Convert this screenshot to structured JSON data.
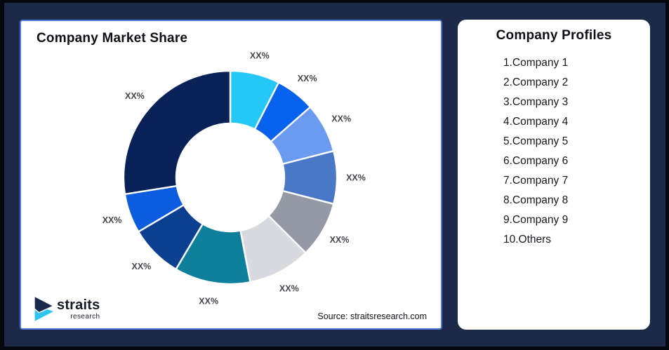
{
  "window": {
    "bg": "#1D2A47",
    "frame_border": "#06080d"
  },
  "market_share": {
    "title": "Company Market Share",
    "source": "Source: straitsresearch.com",
    "card_border": "#4E79D6",
    "logo": {
      "brand": "straits",
      "sub": "research",
      "icon_navy": "#18294B",
      "icon_cyan": "#2CC5F0"
    }
  },
  "chart_data": {
    "type": "pie",
    "subtype": "donut",
    "title": "Company Market Share",
    "categories": [
      "Company 1",
      "Company 2",
      "Company 3",
      "Company 4",
      "Company 5",
      "Company 6",
      "Company 7",
      "Company 8",
      "Company 9",
      "Others"
    ],
    "values": [
      7.5,
      6,
      7.5,
      8,
      8.5,
      9.5,
      11.5,
      8,
      6,
      27.5
    ],
    "labels": [
      "XX%",
      "XX%",
      "XX%",
      "XX%",
      "XX%",
      "XX%",
      "XX%",
      "XX%",
      "XX%",
      "XX%"
    ],
    "colors": [
      "#24C7F6",
      "#0762EE",
      "#6B9BF0",
      "#4B78C6",
      "#9599A6",
      "#D8DADF",
      "#0E7F9B",
      "#0B3F90",
      "#0B5CDE",
      "#082157"
    ],
    "label_color": "#45464C",
    "start_angle_deg": 0,
    "direction": "clockwise",
    "legend_position": "none",
    "note": "All slice data labels are masked as XX% in the image; values are visual estimates of arc sizes in percent."
  },
  "profiles": {
    "title": "Company Profiles",
    "items": [
      "1.Company 1",
      "2.Company 2",
      "3.Company 3",
      "4.Company 4",
      "5.Company 5",
      "6.Company 6",
      "7.Company 7",
      "8.Company 8",
      "9.Company 9",
      "10.Others"
    ]
  }
}
